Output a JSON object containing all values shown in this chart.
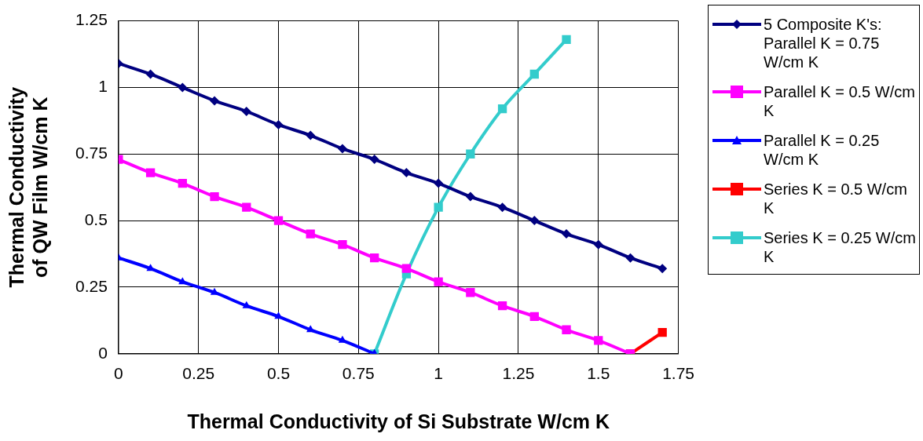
{
  "chart_data": {
    "type": "line",
    "xlabel": "Thermal Conductivity of Si Substrate W/cm K",
    "ylabel": "Thermal Conductivity of QW Film W/cm K",
    "xlim": [
      0,
      1.75
    ],
    "xticks": [
      0,
      0.25,
      0.5,
      0.75,
      1,
      1.25,
      1.5,
      1.75
    ],
    "ylim": [
      0,
      1.25
    ],
    "yticks": [
      0,
      0.25,
      0.5,
      0.75,
      1,
      1.25
    ],
    "grid": true,
    "legend": "right",
    "series": [
      {
        "name": "5 Composite K's: Parallel K = 0.75 W/cm K",
        "color": "#000080",
        "marker": "diamond",
        "x": [
          0,
          0.1,
          0.2,
          0.3,
          0.4,
          0.5,
          0.6,
          0.7,
          0.8,
          0.9,
          1.0,
          1.1,
          1.2,
          1.3,
          1.4,
          1.5,
          1.6,
          1.7
        ],
        "values": [
          1.09,
          1.05,
          1.0,
          0.95,
          0.91,
          0.86,
          0.82,
          0.77,
          0.73,
          0.68,
          0.64,
          0.59,
          0.55,
          0.5,
          0.45,
          0.41,
          0.36,
          0.32
        ]
      },
      {
        "name": "Parallel K = 0.5 W/cm K",
        "color": "#ff00ff",
        "marker": "square",
        "x": [
          0,
          0.1,
          0.2,
          0.3,
          0.4,
          0.5,
          0.6,
          0.7,
          0.8,
          0.9,
          1.0,
          1.1,
          1.2,
          1.3,
          1.4,
          1.5,
          1.6
        ],
        "values": [
          0.73,
          0.68,
          0.64,
          0.59,
          0.55,
          0.5,
          0.45,
          0.41,
          0.36,
          0.32,
          0.27,
          0.23,
          0.18,
          0.14,
          0.09,
          0.05,
          0
        ]
      },
      {
        "name": "Parallel K = 0.25 W/cm K",
        "color": "#0000ff",
        "marker": "triangle",
        "x": [
          0,
          0.1,
          0.2,
          0.3,
          0.4,
          0.5,
          0.6,
          0.7,
          0.8
        ],
        "values": [
          0.36,
          0.32,
          0.27,
          0.23,
          0.18,
          0.14,
          0.09,
          0.05,
          0
        ]
      },
      {
        "name": "Series K = 0.5 W/cm K",
        "color": "#ff0000",
        "marker": "square",
        "x": [
          1.6,
          1.7
        ],
        "values": [
          0,
          0.08
        ]
      },
      {
        "name": "Series K = 0.25 W/cm K",
        "color": "#33cccc",
        "marker": "square",
        "x": [
          0.8,
          0.9,
          1.0,
          1.1,
          1.2,
          1.3,
          1.4
        ],
        "values": [
          0,
          0.3,
          0.55,
          0.75,
          0.92,
          1.05,
          1.18
        ]
      }
    ]
  }
}
